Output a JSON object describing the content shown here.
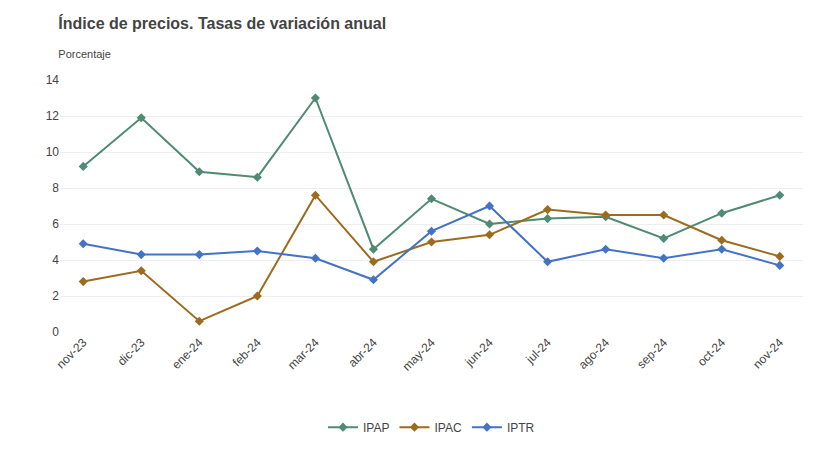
{
  "chart_data": {
    "type": "line",
    "title": "Índice de precios. Tasas de variación anual",
    "subtitle": "Porcentaje",
    "categories": [
      "nov-23",
      "dic-23",
      "ene-24",
      "feb-24",
      "mar-24",
      "abr-24",
      "may-24",
      "jun-24",
      "jul-24",
      "ago-24",
      "sep-24",
      "oct-24",
      "nov-24"
    ],
    "series": [
      {
        "name": "IPAP",
        "color": "#4e8b72",
        "values": [
          9.2,
          11.9,
          8.9,
          8.6,
          13.0,
          4.6,
          7.4,
          6.0,
          6.3,
          6.4,
          5.2,
          6.6,
          7.6
        ]
      },
      {
        "name": "IPAC",
        "color": "#9c6b1e",
        "values": [
          2.8,
          3.4,
          0.6,
          2.0,
          7.6,
          3.9,
          5.0,
          5.4,
          6.8,
          6.5,
          6.5,
          5.1,
          4.2
        ]
      },
      {
        "name": "IPTR",
        "color": "#4472c4",
        "values": [
          4.9,
          4.3,
          4.3,
          4.5,
          4.1,
          2.9,
          5.6,
          7.0,
          3.9,
          4.6,
          4.1,
          4.6,
          3.7
        ]
      }
    ],
    "ylim": [
      0,
      14
    ],
    "yticks": [
      0,
      2,
      4,
      6,
      8,
      10,
      12,
      14
    ],
    "marker": "diamond",
    "grid": true,
    "legend": "bottom"
  }
}
